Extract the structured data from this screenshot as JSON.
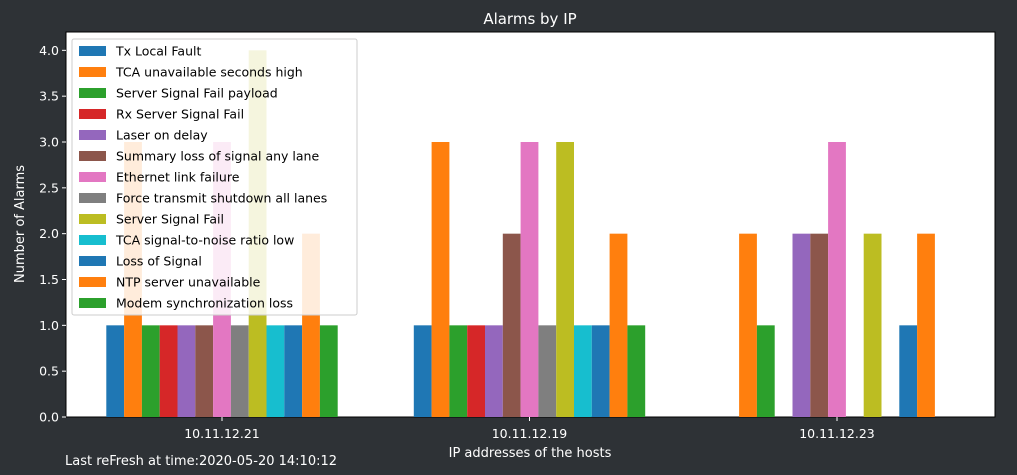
{
  "chart_data": {
    "type": "bar",
    "title": "Alarms by IP",
    "xlabel": "IP addresses of the hosts",
    "ylabel": "Number of Alarms",
    "categories": [
      "10.11.12.21",
      "10.11.12.19",
      "10.11.12.23"
    ],
    "ylim": [
      0,
      4.2
    ],
    "yticks": [
      "0.0",
      "0.5",
      "1.0",
      "1.5",
      "2.0",
      "2.5",
      "3.0",
      "3.5",
      "4.0"
    ],
    "grid": false,
    "legend_position": "top-left",
    "series": [
      {
        "name": "Tx Local Fault",
        "color": "#1f77b4",
        "values": [
          1,
          1,
          0
        ]
      },
      {
        "name": "TCA unavailable seconds high",
        "color": "#ff7f0e",
        "values": [
          3,
          3,
          2
        ]
      },
      {
        "name": "Server Signal Fail payload",
        "color": "#2ca02c",
        "values": [
          1,
          1,
          1
        ]
      },
      {
        "name": "Rx Server Signal Fail",
        "color": "#d62728",
        "values": [
          1,
          1,
          0
        ]
      },
      {
        "name": "Laser on delay",
        "color": "#9467bd",
        "values": [
          1,
          1,
          2
        ]
      },
      {
        "name": "Summary loss of signal any lane",
        "color": "#8c564b",
        "values": [
          1,
          2,
          2
        ]
      },
      {
        "name": "Ethernet link failure",
        "color": "#e377c2",
        "values": [
          3,
          3,
          3
        ]
      },
      {
        "name": "Force transmit shutdown all lanes",
        "color": "#7f7f7f",
        "values": [
          1,
          1,
          0
        ]
      },
      {
        "name": "Server Signal Fail",
        "color": "#bcbd22",
        "values": [
          4,
          3,
          2
        ]
      },
      {
        "name": "TCA signal-to-noise ratio low",
        "color": "#17becf",
        "values": [
          1,
          1,
          0
        ]
      },
      {
        "name": "Loss of Signal",
        "color": "#1f77b4",
        "values": [
          1,
          1,
          1
        ]
      },
      {
        "name": "NTP server unavailable",
        "color": "#ff7f0e",
        "values": [
          2,
          2,
          2
        ]
      },
      {
        "name": "Modem synchronization loss",
        "color": "#2ca02c",
        "values": [
          1,
          1,
          0
        ]
      }
    ]
  },
  "footer": {
    "last_refresh": "Last reFresh at time:2020-05-20 14:10:12"
  }
}
